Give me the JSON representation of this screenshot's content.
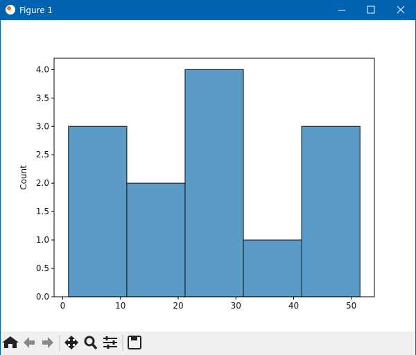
{
  "window_title": "Figure 1",
  "chart_data": {
    "type": "histogram",
    "ylabel": "Count",
    "bins": [
      1,
      11.1,
      21.2,
      31.3,
      41.4,
      51.5
    ],
    "values": [
      3,
      2,
      4,
      1,
      3
    ],
    "color": "#5b9bc8",
    "edgecolor": "#1f2a33",
    "xlim": [
      -1.5,
      54
    ],
    "xticks": [
      0,
      10,
      20,
      30,
      40,
      50
    ],
    "ylim": [
      0,
      4.2
    ],
    "yticks": [
      {
        "value": 0,
        "label": "0.0"
      },
      {
        "value": 0.5,
        "label": "0.5"
      },
      {
        "value": 1,
        "label": "1.0"
      },
      {
        "value": 1.5,
        "label": "1.5"
      },
      {
        "value": 2,
        "label": "2.0"
      },
      {
        "value": 2.5,
        "label": "2.5"
      },
      {
        "value": 3,
        "label": "3.0"
      },
      {
        "value": 3.5,
        "label": "3.5"
      },
      {
        "value": 4,
        "label": "4.0"
      }
    ]
  }
}
